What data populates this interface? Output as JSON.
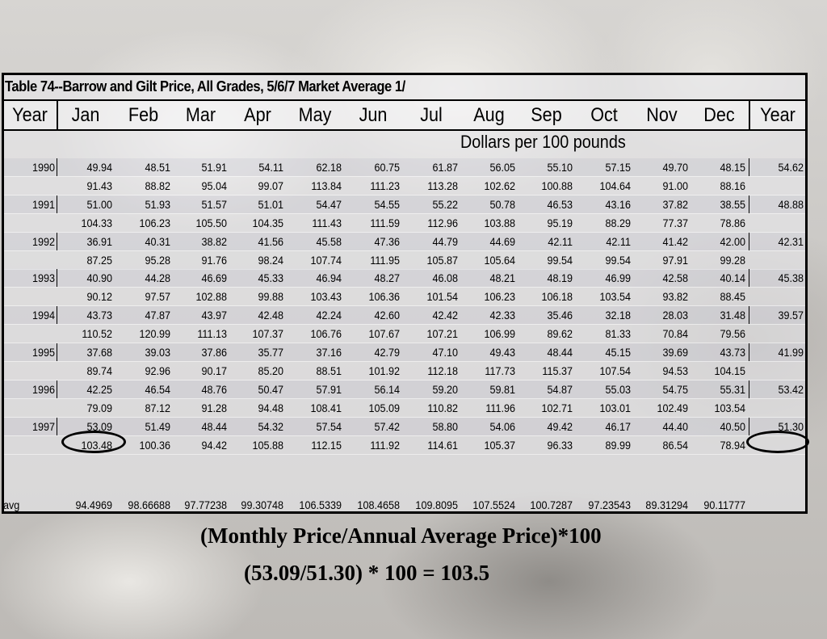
{
  "table": {
    "title": "Table 74--Barrow and Gilt Price, All Grades, 5/6/7 Market Average 1/",
    "headers": [
      "Year",
      "Jan",
      "Feb",
      "Mar",
      "Apr",
      "May",
      "Jun",
      "Jul",
      "Aug",
      "Sep",
      "Oct",
      "Nov",
      "Dec",
      "Year"
    ],
    "units": "Dollars per 100 pounds",
    "rows": [
      {
        "year": "1990",
        "values": [
          "49.94",
          "48.51",
          "51.91",
          "54.11",
          "62.18",
          "60.75",
          "61.87",
          "56.05",
          "55.10",
          "57.15",
          "49.70",
          "48.15"
        ],
        "annual": "54.62"
      },
      {
        "year": "",
        "values": [
          "91.43",
          "88.82",
          "95.04",
          "99.07",
          "113.84",
          "111.23",
          "113.28",
          "102.62",
          "100.88",
          "104.64",
          "91.00",
          "88.16"
        ],
        "annual": ""
      },
      {
        "year": "1991",
        "values": [
          "51.00",
          "51.93",
          "51.57",
          "51.01",
          "54.47",
          "54.55",
          "55.22",
          "50.78",
          "46.53",
          "43.16",
          "37.82",
          "38.55"
        ],
        "annual": "48.88"
      },
      {
        "year": "",
        "values": [
          "104.33",
          "106.23",
          "105.50",
          "104.35",
          "111.43",
          "111.59",
          "112.96",
          "103.88",
          "95.19",
          "88.29",
          "77.37",
          "78.86"
        ],
        "annual": ""
      },
      {
        "year": "1992",
        "values": [
          "36.91",
          "40.31",
          "38.82",
          "41.56",
          "45.58",
          "47.36",
          "44.79",
          "44.69",
          "42.11",
          "42.11",
          "41.42",
          "42.00"
        ],
        "annual": "42.31"
      },
      {
        "year": "",
        "values": [
          "87.25",
          "95.28",
          "91.76",
          "98.24",
          "107.74",
          "111.95",
          "105.87",
          "105.64",
          "99.54",
          "99.54",
          "97.91",
          "99.28"
        ],
        "annual": ""
      },
      {
        "year": "1993",
        "values": [
          "40.90",
          "44.28",
          "46.69",
          "45.33",
          "46.94",
          "48.27",
          "46.08",
          "48.21",
          "48.19",
          "46.99",
          "42.58",
          "40.14"
        ],
        "annual": "45.38"
      },
      {
        "year": "",
        "values": [
          "90.12",
          "97.57",
          "102.88",
          "99.88",
          "103.43",
          "106.36",
          "101.54",
          "106.23",
          "106.18",
          "103.54",
          "93.82",
          "88.45"
        ],
        "annual": ""
      },
      {
        "year": "1994",
        "values": [
          "43.73",
          "47.87",
          "43.97",
          "42.48",
          "42.24",
          "42.60",
          "42.42",
          "42.33",
          "35.46",
          "32.18",
          "28.03",
          "31.48"
        ],
        "annual": "39.57"
      },
      {
        "year": "",
        "values": [
          "110.52",
          "120.99",
          "111.13",
          "107.37",
          "106.76",
          "107.67",
          "107.21",
          "106.99",
          "89.62",
          "81.33",
          "70.84",
          "79.56"
        ],
        "annual": ""
      },
      {
        "year": "1995",
        "values": [
          "37.68",
          "39.03",
          "37.86",
          "35.77",
          "37.16",
          "42.79",
          "47.10",
          "49.43",
          "48.44",
          "45.15",
          "39.69",
          "43.73"
        ],
        "annual": "41.99"
      },
      {
        "year": "",
        "values": [
          "89.74",
          "92.96",
          "90.17",
          "85.20",
          "88.51",
          "101.92",
          "112.18",
          "117.73",
          "115.37",
          "107.54",
          "94.53",
          "104.15"
        ],
        "annual": ""
      },
      {
        "year": "1996",
        "values": [
          "42.25",
          "46.54",
          "48.76",
          "50.47",
          "57.91",
          "56.14",
          "59.20",
          "59.81",
          "54.87",
          "55.03",
          "54.75",
          "55.31"
        ],
        "annual": "53.42"
      },
      {
        "year": "",
        "values": [
          "79.09",
          "87.12",
          "91.28",
          "94.48",
          "108.41",
          "105.09",
          "110.82",
          "111.96",
          "102.71",
          "103.01",
          "102.49",
          "103.54"
        ],
        "annual": ""
      },
      {
        "year": "1997",
        "values": [
          "53.09",
          "51.49",
          "48.44",
          "54.32",
          "57.54",
          "57.42",
          "58.80",
          "54.06",
          "49.42",
          "46.17",
          "44.40",
          "40.50"
        ],
        "annual": "51.30"
      },
      {
        "year": "",
        "values": [
          "103.48",
          "100.36",
          "94.42",
          "105.88",
          "112.15",
          "111.92",
          "114.61",
          "105.37",
          "96.33",
          "89.99",
          "86.54",
          "78.94"
        ],
        "annual": ""
      }
    ],
    "avg_label": "avg",
    "avg_values": [
      "94.4969",
      "98.66688",
      "97.77238",
      "99.30748",
      "106.5339",
      "108.4658",
      "109.8095",
      "107.5524",
      "100.7287",
      "97.23543",
      "89.31294",
      "90.11777"
    ]
  },
  "formula": {
    "line1": "(Monthly Price/Annual Average Price)*100",
    "line2": "(53.09/51.30) * 100 = 103.5"
  }
}
